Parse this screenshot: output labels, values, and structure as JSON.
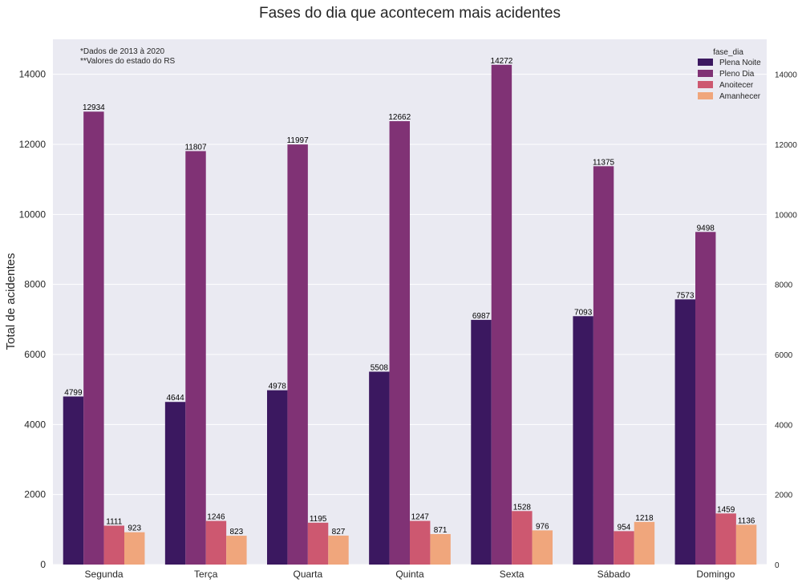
{
  "chart_data": {
    "type": "bar",
    "title": "Fases do dia que acontecem mais acidentes",
    "xlabel": "",
    "ylabel": "Total de acidentes",
    "ylim": [
      0,
      15000
    ],
    "yticks": [
      0,
      2000,
      4000,
      6000,
      8000,
      10000,
      12000,
      14000
    ],
    "grid": true,
    "legend_title": "fase_dia",
    "legend_position": "top-right",
    "annotations": [
      "*Dados de 2013 à 2020",
      "**Valores do estado do RS"
    ],
    "categories": [
      "Segunda",
      "Terça",
      "Quarta",
      "Quinta",
      "Sexta",
      "Sábado",
      "Domingo"
    ],
    "series": [
      {
        "name": "Plena Noite",
        "color": "#3b1860",
        "values": [
          4799,
          4644,
          4978,
          5508,
          6987,
          7093,
          7573
        ]
      },
      {
        "name": "Pleno Dia",
        "color": "#803275",
        "values": [
          12934,
          11807,
          11997,
          12662,
          14272,
          11375,
          9498
        ]
      },
      {
        "name": "Anoitecer",
        "color": "#cd5870",
        "values": [
          1111,
          1246,
          1195,
          1247,
          1528,
          954,
          1459
        ]
      },
      {
        "name": "Amanhecer",
        "color": "#f0a67c",
        "values": [
          923,
          823,
          827,
          871,
          976,
          1218,
          1136
        ]
      }
    ]
  }
}
